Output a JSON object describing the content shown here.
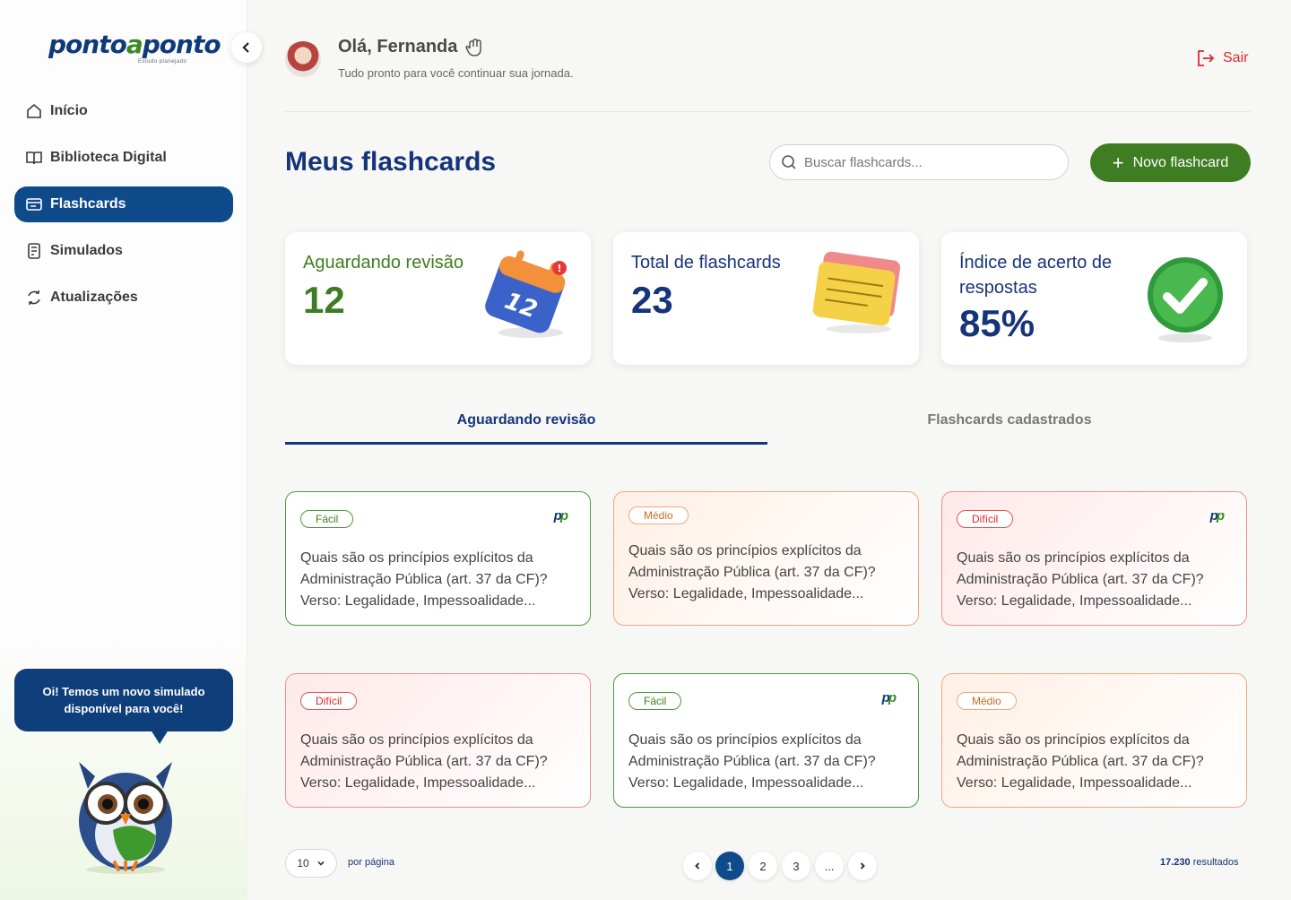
{
  "logo": {
    "part1": "ponto",
    "part2": "a",
    "part3": "ponto",
    "tagline": "Estudo planejado"
  },
  "sidebar": {
    "items": [
      {
        "label": "Início",
        "icon": "home-icon"
      },
      {
        "label": "Biblioteca Digital",
        "icon": "book-icon"
      },
      {
        "label": "Flashcards",
        "icon": "flashcard-icon",
        "active": true
      },
      {
        "label": "Simulados",
        "icon": "exam-icon"
      },
      {
        "label": "Atualizações",
        "icon": "refresh-icon"
      }
    ],
    "bubble": "Oi! Temos um novo simulado disponível para você!"
  },
  "header": {
    "greeting": "Olá, Fernanda",
    "subtitle": "Tudo pronto para você continuar sua jornada.",
    "logout": "Sair"
  },
  "main": {
    "title": "Meus flashcards",
    "search_placeholder": "Buscar flashcards...",
    "new_button": "Novo flashcard"
  },
  "stats": [
    {
      "label": "Aguardando revisão",
      "value": "12"
    },
    {
      "label": "Total de flashcards",
      "value": "23"
    },
    {
      "label": "Índice de acerto de respostas",
      "value": "85%"
    }
  ],
  "tabs": [
    "Aguardando revisão",
    "Flashcards cadastrados"
  ],
  "cards": [
    {
      "level": "Fácil",
      "text": "Quais são os princípios explícitos da Administração Pública (art. 37 da CF)? Verso: Legalidade, Impessoalidade..."
    },
    {
      "level": "Médio",
      "text": "Quais são os princípios explícitos da Administração Pública (art. 37 da CF)? Verso: Legalidade, Impessoalidade..."
    },
    {
      "level": "Difícil",
      "text": "Quais são os princípios explícitos da Administração Pública (art. 37 da CF)? Verso: Legalidade, Impessoalidade..."
    },
    {
      "level": "Difícil",
      "text": "Quais são os princípios explícitos da Administração Pública (art. 37 da CF)? Verso: Legalidade, Impessoalidade..."
    },
    {
      "level": "Fácil",
      "text": "Quais são os princípios explícitos da Administração Pública (art. 37 da CF)? Verso: Legalidade, Impessoalidade..."
    },
    {
      "level": "Médio",
      "text": "Quais são os princípios explícitos da Administração Pública (art. 37 da CF)? Verso: Legalidade, Impessoalidade..."
    }
  ],
  "card_logo": "pp",
  "pagination": {
    "per_page_value": "10",
    "per_page_label": "por página",
    "pages": [
      "1",
      "2",
      "3",
      "..."
    ],
    "results_count": "17.230",
    "results_label": "resultados"
  },
  "colors": {
    "primary": "#0f4a8a",
    "accent_green": "#3f7d22",
    "title_blue": "#16347a",
    "danger": "#e0292b"
  }
}
